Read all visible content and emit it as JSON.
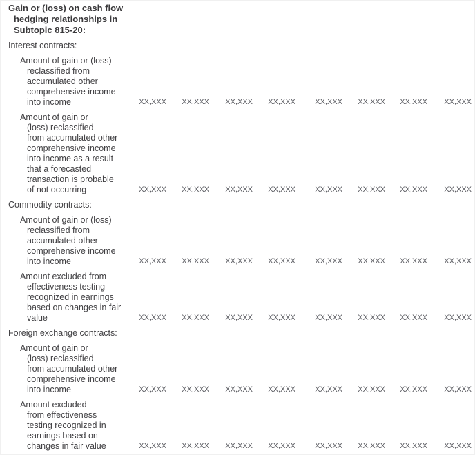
{
  "table": {
    "heading": "Gain or (loss) on cash flow\nhedging relationships in\nSubtopic 815-20:",
    "value_placeholder": "XX,XXX",
    "column_count": 8,
    "colors": {
      "background": "#ffffff",
      "heading_text": "#3a393b",
      "label_text": "#414043",
      "value_text": "#595a60"
    },
    "sections": [
      {
        "title": "Interest contracts:",
        "rows": [
          {
            "label": "Amount of gain or (loss)\nreclassified from\naccumulated other\ncomprehensive income\ninto income",
            "values": [
              "XX,XXX",
              "XX,XXX",
              "XX,XXX",
              "XX,XXX",
              "XX,XXX",
              "XX,XXX",
              "XX,XXX",
              "XX,XXX"
            ]
          },
          {
            "label": "Amount of gain or\n(loss) reclassified\nfrom accumulated other\ncomprehensive income\ninto income as a result\nthat a forecasted\ntransaction is probable\nof not occurring",
            "values": [
              "XX,XXX",
              "XX,XXX",
              "XX,XXX",
              "XX,XXX",
              "XX,XXX",
              "XX,XXX",
              "XX,XXX",
              "XX,XXX"
            ]
          }
        ]
      },
      {
        "title": "Commodity contracts:",
        "rows": [
          {
            "label": "Amount of gain or (loss)\nreclassified from\naccumulated other\ncomprehensive income\ninto income",
            "values": [
              "XX,XXX",
              "XX,XXX",
              "XX,XXX",
              "XX,XXX",
              "XX,XXX",
              "XX,XXX",
              "XX,XXX",
              "XX,XXX"
            ]
          },
          {
            "label": "Amount excluded from\neffectiveness testing\nrecognized in earnings\nbased on changes in fair\nvalue",
            "values": [
              "XX,XXX",
              "XX,XXX",
              "XX,XXX",
              "XX,XXX",
              "XX,XXX",
              "XX,XXX",
              "XX,XXX",
              "XX,XXX"
            ]
          }
        ]
      },
      {
        "title": "Foreign exchange contracts:",
        "rows": [
          {
            "label": "Amount of gain or\n(loss) reclassified\nfrom accumulated other\ncomprehensive income\ninto income",
            "values": [
              "XX,XXX",
              "XX,XXX",
              "XX,XXX",
              "XX,XXX",
              "XX,XXX",
              "XX,XXX",
              "XX,XXX",
              "XX,XXX"
            ]
          },
          {
            "label": "Amount excluded\nfrom effectiveness\ntesting recognized in\nearnings based on\nchanges in fair value",
            "values": [
              "XX,XXX",
              "XX,XXX",
              "XX,XXX",
              "XX,XXX",
              "XX,XXX",
              "XX,XXX",
              "XX,XXX",
              "XX,XXX"
            ]
          }
        ]
      }
    ]
  }
}
